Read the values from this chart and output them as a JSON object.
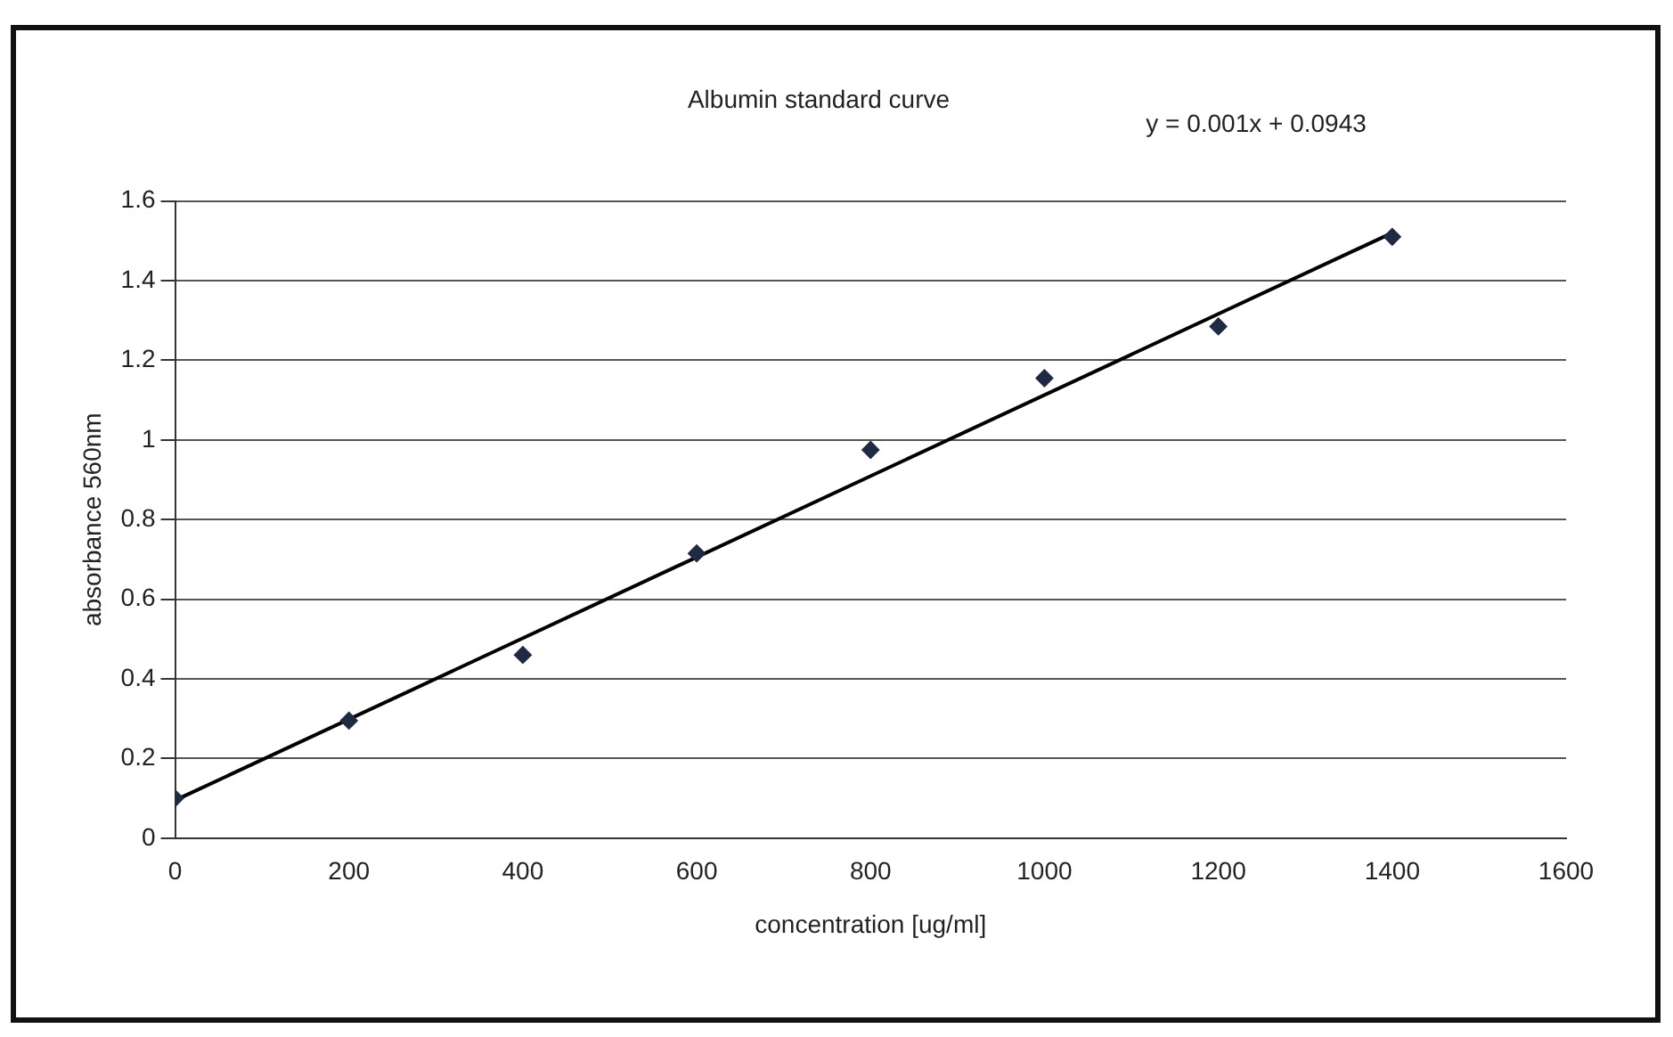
{
  "chart_data": {
    "type": "scatter",
    "title": "Albumin standard curve",
    "xlabel": "concentration [ug/ml]",
    "ylabel": "absorbance 560nm",
    "annotations": [
      "y = 0.001x + 0.0943"
    ],
    "series": [
      {
        "type": "scatter",
        "color": "#1f2a44",
        "marker": "diamond",
        "x": [
          0,
          200,
          400,
          600,
          800,
          1000,
          1200,
          1400
        ],
        "values": [
          0.1,
          0.295,
          0.46,
          0.715,
          0.975,
          1.155,
          1.285,
          1.51
        ]
      },
      {
        "type": "line",
        "color": "#000000",
        "marker": "none",
        "line_style": "solid",
        "x": [
          0,
          1400
        ],
        "values": [
          0.095,
          1.52
        ]
      }
    ],
    "xlim": [
      0,
      1600
    ],
    "xticks": [
      0,
      200,
      400,
      600,
      800,
      1000,
      1200,
      1400,
      1600
    ],
    "ylim": [
      0,
      1.6
    ],
    "yticks": [
      0,
      0.2,
      0.4,
      0.6,
      0.8,
      1,
      1.2,
      1.4,
      1.6
    ],
    "grid": "y",
    "legend": false
  }
}
